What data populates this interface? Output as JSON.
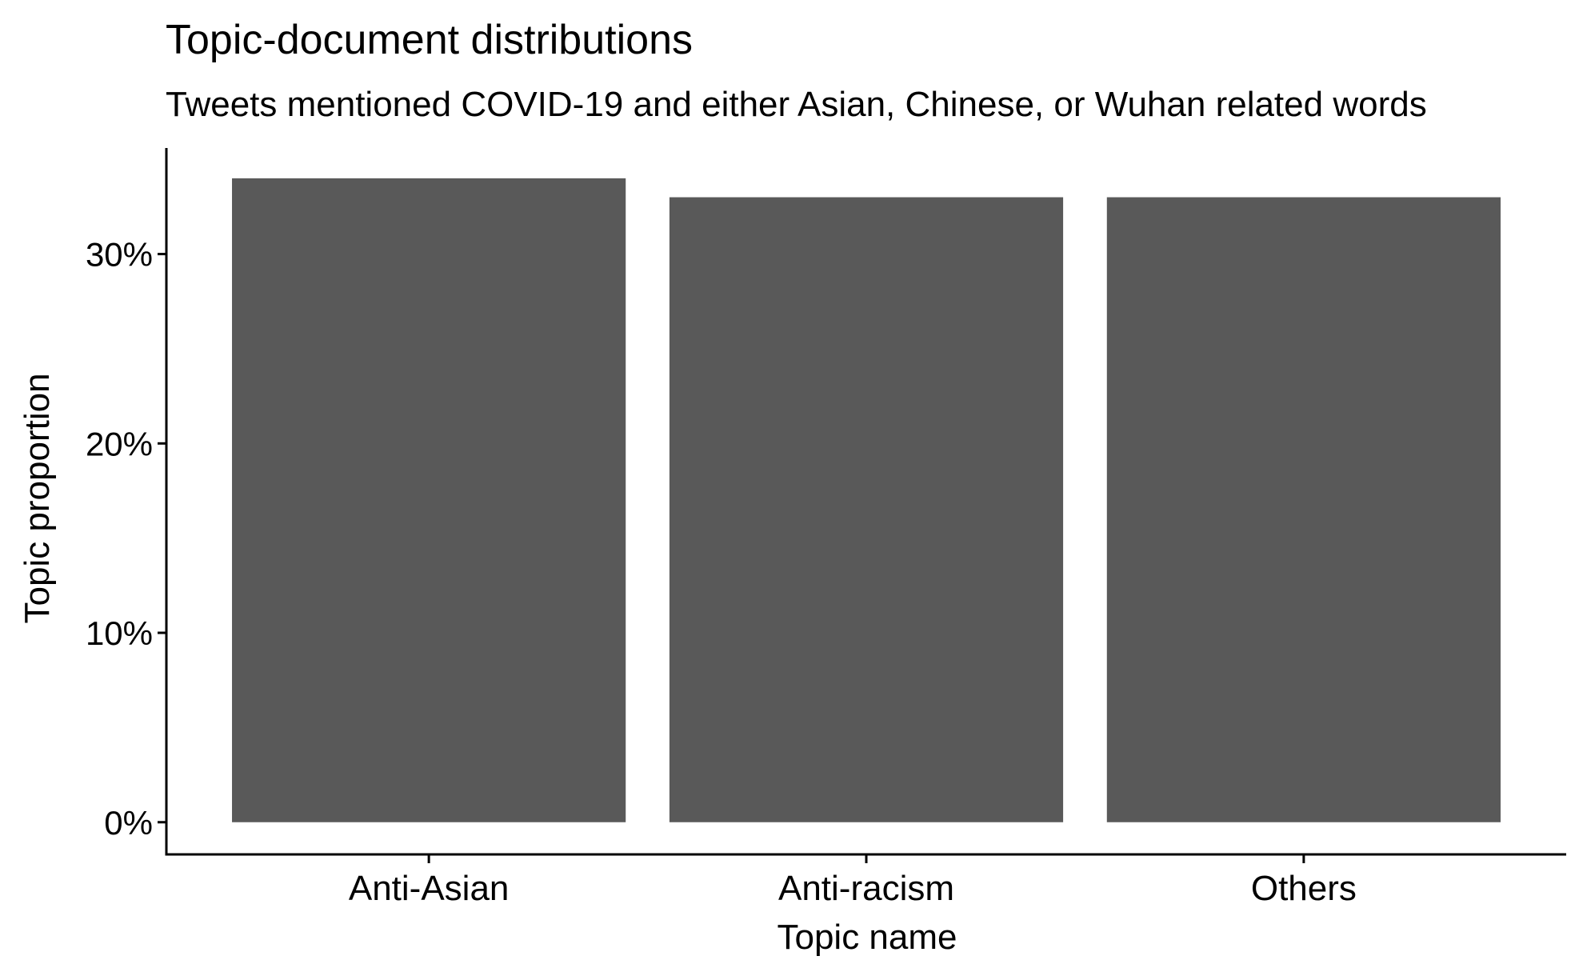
{
  "chart_data": {
    "type": "bar",
    "title": "Topic-document distributions",
    "subtitle": "Tweets mentioned COVID-19 and either Asian, Chinese, or Wuhan related words",
    "xlabel": "Topic name",
    "ylabel": "Topic proportion",
    "categories": [
      "Anti-Asian",
      "Anti-racism",
      "Others"
    ],
    "values": [
      0.34,
      0.33,
      0.33
    ],
    "ylim": [
      -0.017,
      0.356
    ],
    "yticks": [
      0,
      0.1,
      0.2,
      0.3
    ],
    "ytick_labels": [
      "0%",
      "10%",
      "20%",
      "30%"
    ],
    "grid": false,
    "legend": "none",
    "bar_color": "#595959"
  }
}
